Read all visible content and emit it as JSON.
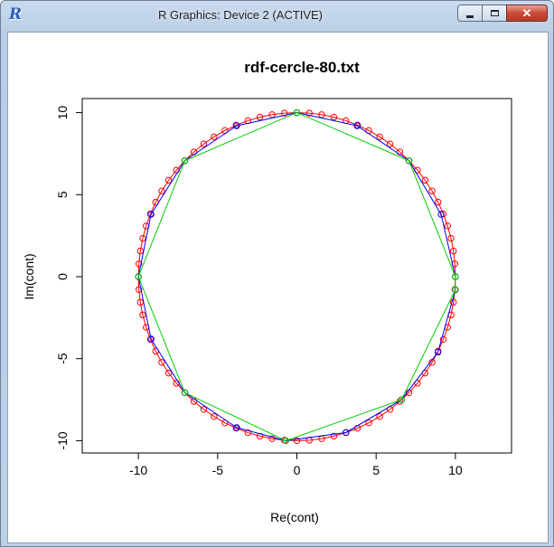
{
  "window": {
    "title": "R Graphics: Device 2 (ACTIVE)",
    "app_icon_letter": "R",
    "buttons": {
      "minimize": "minimize",
      "maximize": "maximize",
      "close": "✕"
    }
  },
  "chart_data": {
    "type": "scatter",
    "title": "rdf-cercle-80.txt",
    "xlabel": "Re(cont)",
    "ylabel": "Im(cont)",
    "xlim": [
      -13,
      13
    ],
    "ylim": [
      -10.5,
      10.5
    ],
    "x_ticks": [
      -10,
      -5,
      0,
      5,
      10
    ],
    "y_ticks": [
      -10,
      -5,
      0,
      5,
      10
    ],
    "x_tick_labels": [
      "-10",
      "-5",
      "0",
      "5",
      "10"
    ],
    "y_tick_labels": [
      "-10",
      "-5",
      "0",
      "5",
      "10"
    ],
    "grid": false,
    "series": [
      {
        "style": "points+line",
        "color": "#ff0000",
        "points": "80 equally spaced points on the circle of radius 10 (theta = k*4.5 deg, k = 0..79)",
        "n": 80,
        "radius": 10
      },
      {
        "style": "points+line",
        "color": "#0000ff",
        "x": [
          10.0,
          9.1,
          7.07,
          3.8,
          0.0,
          -3.8,
          -7.07,
          -9.2,
          -10.0,
          -9.2,
          -7.07,
          -3.8,
          -0.7,
          3.1,
          6.6,
          8.9,
          10.0
        ],
        "y": [
          0.0,
          3.8,
          7.07,
          9.2,
          10.0,
          9.2,
          7.07,
          3.8,
          0.0,
          -3.8,
          -7.07,
          -9.2,
          -10.0,
          -9.5,
          -7.5,
          -4.6,
          -0.8
        ]
      },
      {
        "style": "points+line",
        "color": "#00cc00",
        "x": [
          10.0,
          7.07,
          0.0,
          -7.07,
          -10.0,
          -7.07,
          -0.7,
          6.6,
          10.0,
          10.0
        ],
        "y": [
          0.0,
          7.07,
          10.0,
          7.07,
          0.0,
          -7.07,
          -10.0,
          -7.5,
          -0.8,
          0.0
        ]
      }
    ]
  }
}
